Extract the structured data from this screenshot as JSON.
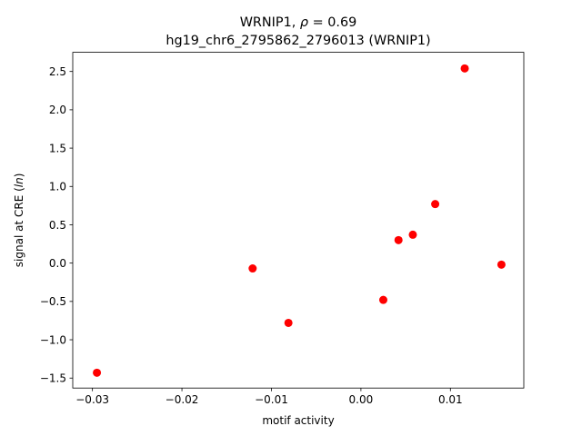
{
  "chart_data": {
    "type": "scatter",
    "title_line1_prefix": "WRNIP1, ",
    "title_line1_rho": "ρ",
    "title_line1_suffix": " = 0.69",
    "title_line2": "hg19_chr6_2795862_2796013 (WRNIP1)",
    "xlabel": "motif activity",
    "ylabel_prefix": "signal at CRE (",
    "ylabel_italic": "ln",
    "ylabel_suffix": ")",
    "xlim": [
      -0.0322,
      0.0182
    ],
    "ylim": [
      -1.63,
      2.75
    ],
    "xticks": [
      {
        "value": -0.03,
        "label": "−0.03"
      },
      {
        "value": -0.02,
        "label": "−0.02"
      },
      {
        "value": -0.01,
        "label": "−0.01"
      },
      {
        "value": 0.0,
        "label": "0.00"
      },
      {
        "value": 0.01,
        "label": "0.01"
      }
    ],
    "yticks": [
      {
        "value": -1.5,
        "label": "−1.5"
      },
      {
        "value": -1.0,
        "label": "−1.0"
      },
      {
        "value": -0.5,
        "label": "−0.5"
      },
      {
        "value": 0.0,
        "label": "0.0"
      },
      {
        "value": 0.5,
        "label": "0.5"
      },
      {
        "value": 1.0,
        "label": "1.0"
      },
      {
        "value": 1.5,
        "label": "1.5"
      },
      {
        "value": 2.0,
        "label": "2.0"
      },
      {
        "value": 2.5,
        "label": "2.5"
      }
    ],
    "points": [
      {
        "x": -0.0295,
        "y": -1.43
      },
      {
        "x": -0.0121,
        "y": -0.07
      },
      {
        "x": -0.0081,
        "y": -0.78
      },
      {
        "x": 0.0025,
        "y": -0.48
      },
      {
        "x": 0.0042,
        "y": 0.3
      },
      {
        "x": 0.0058,
        "y": 0.37
      },
      {
        "x": 0.0083,
        "y": 0.77
      },
      {
        "x": 0.0116,
        "y": 2.54
      },
      {
        "x": 0.0157,
        "y": -0.02
      }
    ],
    "marker_color": "#ff0000",
    "grid": false,
    "legend": "none"
  }
}
